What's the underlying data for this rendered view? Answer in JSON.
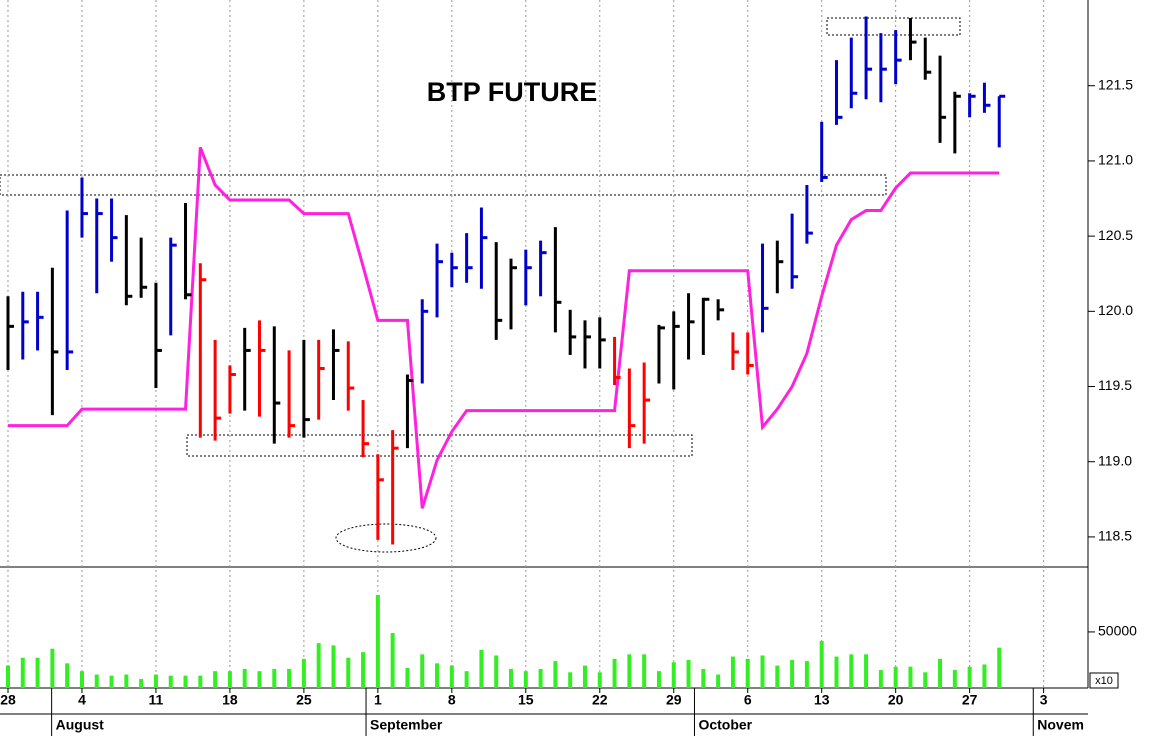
{
  "chart_data": {
    "type": "hlc",
    "title": "BTP FUTURE",
    "x": [
      0,
      1,
      2,
      3,
      4,
      5,
      6,
      7,
      8,
      9,
      10,
      11,
      12,
      13,
      14,
      15,
      16,
      17,
      18,
      19,
      20,
      21,
      22,
      23,
      24,
      25,
      26,
      27,
      28,
      29,
      30,
      31,
      32,
      33,
      34,
      35,
      36,
      37,
      38,
      39,
      40,
      41,
      42,
      43,
      44,
      45,
      46,
      47,
      48,
      49,
      50,
      51,
      52,
      53,
      54,
      55,
      56,
      57,
      58,
      59,
      60,
      61,
      62,
      63,
      64,
      65,
      66,
      67
    ],
    "high": [
      120.1,
      120.13,
      120.13,
      120.29,
      120.67,
      120.89,
      120.75,
      120.75,
      120.64,
      120.49,
      120.19,
      120.49,
      120.72,
      120.32,
      119.81,
      119.64,
      119.89,
      119.94,
      119.9,
      119.74,
      119.81,
      119.81,
      119.88,
      119.8,
      119.41,
      119.05,
      119.21,
      119.58,
      120.08,
      120.45,
      120.39,
      120.52,
      120.69,
      120.46,
      120.35,
      120.41,
      120.47,
      120.56,
      120.01,
      119.94,
      119.96,
      119.83,
      119.62,
      119.66,
      119.91,
      120.0,
      120.12,
      120.09,
      120.08,
      119.86,
      119.86,
      120.45,
      120.47,
      120.65,
      120.84,
      121.26,
      121.67,
      121.82,
      121.96,
      121.85,
      121.87,
      121.95,
      121.82,
      121.7,
      121.46,
      121.45,
      121.52,
      121.43
    ],
    "low": [
      119.61,
      119.68,
      119.74,
      119.31,
      119.61,
      120.49,
      120.12,
      120.33,
      120.04,
      120.09,
      119.49,
      119.84,
      120.08,
      119.16,
      119.14,
      119.32,
      119.34,
      119.3,
      119.12,
      119.16,
      119.16,
      119.28,
      119.41,
      119.34,
      119.03,
      118.48,
      118.45,
      119.09,
      119.52,
      119.96,
      120.16,
      120.19,
      120.15,
      119.81,
      119.88,
      120.04,
      120.1,
      119.86,
      119.71,
      119.62,
      119.62,
      119.51,
      119.09,
      119.12,
      119.52,
      119.48,
      119.68,
      119.71,
      119.94,
      119.61,
      119.58,
      119.86,
      120.12,
      120.15,
      120.45,
      120.86,
      121.24,
      121.35,
      121.41,
      121.39,
      121.51,
      121.67,
      121.54,
      121.12,
      121.05,
      121.29,
      121.32,
      121.09
    ],
    "close": [
      119.9,
      119.93,
      119.96,
      119.73,
      119.73,
      120.65,
      120.65,
      120.49,
      120.1,
      120.16,
      119.74,
      120.44,
      120.11,
      120.21,
      119.29,
      119.58,
      119.74,
      119.74,
      119.39,
      119.24,
      119.28,
      119.62,
      119.74,
      119.49,
      119.12,
      118.88,
      119.09,
      119.54,
      120.0,
      120.33,
      120.29,
      120.29,
      120.49,
      119.94,
      120.29,
      120.29,
      120.39,
      120.06,
      119.83,
      119.83,
      119.81,
      119.56,
      119.24,
      119.41,
      119.89,
      119.9,
      119.93,
      120.08,
      120.01,
      119.73,
      119.64,
      120.02,
      120.33,
      120.23,
      120.52,
      120.89,
      121.29,
      121.45,
      121.61,
      121.61,
      121.67,
      121.79,
      121.59,
      121.29,
      121.43,
      121.43,
      121.37,
      121.43
    ],
    "bar_colors": [
      "#000000",
      "#0000cc",
      "#0000cc",
      "#000000",
      "#0000cc",
      "#0000cc",
      "#0000cc",
      "#0000cc",
      "#000000",
      "#000000",
      "#000000",
      "#0000cc",
      "#000000",
      "#ff0000",
      "#ff0000",
      "#ff0000",
      "#000000",
      "#ff0000",
      "#000000",
      "#ff0000",
      "#000000",
      "#ff0000",
      "#000000",
      "#ff0000",
      "#ff0000",
      "#ff0000",
      "#ff0000",
      "#000000",
      "#0000cc",
      "#0000cc",
      "#0000cc",
      "#0000cc",
      "#0000cc",
      "#000000",
      "#000000",
      "#0000cc",
      "#0000cc",
      "#000000",
      "#000000",
      "#000000",
      "#000000",
      "#ff0000",
      "#ff0000",
      "#ff0000",
      "#000000",
      "#000000",
      "#000000",
      "#000000",
      "#000000",
      "#ff0000",
      "#ff0000",
      "#0000cc",
      "#000000",
      "#0000cc",
      "#0000cc",
      "#0000cc",
      "#0000cc",
      "#0000cc",
      "#0000cc",
      "#0000cc",
      "#0000cc",
      "#000000",
      "#000000",
      "#000000",
      "#000000",
      "#0000cc",
      "#0000cc",
      "#0000cc"
    ],
    "overlay": {
      "type": "line",
      "color": "#ff22dd",
      "values": [
        119.24,
        119.24,
        119.24,
        119.24,
        119.24,
        119.35,
        119.35,
        119.35,
        119.35,
        119.35,
        119.35,
        119.35,
        119.35,
        121.09,
        120.84,
        120.74,
        120.74,
        120.74,
        120.74,
        120.74,
        120.65,
        120.65,
        120.65,
        120.65,
        120.3,
        119.94,
        119.94,
        119.94,
        118.69,
        119.01,
        119.2,
        119.34,
        119.34,
        119.34,
        119.34,
        119.34,
        119.34,
        119.34,
        119.34,
        119.34,
        119.34,
        119.34,
        120.27,
        120.27,
        120.27,
        120.27,
        120.27,
        120.27,
        120.27,
        120.27,
        120.27,
        119.23,
        119.35,
        119.5,
        119.72,
        120.1,
        120.44,
        120.61,
        120.67,
        120.67,
        120.82,
        120.92,
        120.92,
        120.92,
        120.92,
        120.92,
        120.92,
        120.92
      ]
    },
    "ylim": [
      118.3,
      122.07
    ],
    "yticks": [
      {
        "value": 118.5,
        "label": "118.5"
      },
      {
        "value": 119,
        "label": "119.0"
      },
      119.5,
      {
        "value": 120,
        "label": "120.0"
      },
      120.5,
      {
        "value": 121,
        "label": "121.0"
      },
      121.5
    ],
    "xlim": [
      -0.54,
      73.0
    ],
    "xticks": [
      {
        "value": 0,
        "label": "28"
      },
      {
        "value": 5,
        "label": "4"
      },
      {
        "value": 10,
        "label": "11"
      },
      {
        "value": 15,
        "label": "18"
      },
      {
        "value": 20,
        "label": "25"
      },
      {
        "value": 25,
        "label": "1"
      },
      {
        "value": 30,
        "label": "8"
      },
      {
        "value": 35,
        "label": "15"
      },
      {
        "value": 40,
        "label": "22"
      },
      {
        "value": 45,
        "label": "29"
      },
      {
        "value": 50,
        "label": "6"
      },
      {
        "value": 55,
        "label": "13"
      },
      {
        "value": 60,
        "label": "20"
      },
      {
        "value": 65,
        "label": "27"
      },
      {
        "value": 70,
        "label": "3"
      }
    ],
    "months": [
      {
        "value": 2.95,
        "label": "August"
      },
      {
        "value": 24.2,
        "label": "September"
      },
      {
        "value": 46.4,
        "label": "October"
      },
      {
        "value": 69.3,
        "label": "Novem"
      }
    ],
    "volume": {
      "type": "bar",
      "color": "#33ee22",
      "values": [
        20000,
        27000,
        27000,
        35000,
        22000,
        15000,
        12000,
        11000,
        12000,
        8000,
        12000,
        11000,
        11000,
        11000,
        15000,
        15000,
        17000,
        15000,
        17000,
        17000,
        26000,
        40000,
        38000,
        27000,
        32000,
        83000,
        49000,
        18000,
        30000,
        22000,
        20000,
        15000,
        34000,
        29000,
        17000,
        15000,
        17000,
        24000,
        14000,
        20000,
        14000,
        26000,
        30000,
        30000,
        15000,
        23000,
        25000,
        17000,
        12000,
        28000,
        26000,
        29000,
        20000,
        25000,
        24000,
        42000,
        28000,
        30000,
        30000,
        16000,
        19000,
        19000,
        14000,
        26000,
        16000,
        19000,
        21000,
        36000
      ],
      "ylim": [
        0,
        107000
      ],
      "yticks": [
        50000
      ],
      "multiplier_label": "x10"
    }
  }
}
